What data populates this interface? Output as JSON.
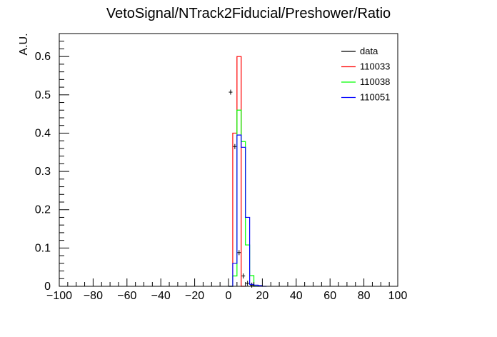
{
  "chart_data": {
    "type": "step-histogram",
    "title": "VetoSignal/NTrack2Fiducial/Preshower/Ratio",
    "xlabel": "",
    "ylabel": "A.U.",
    "xlim": [
      -100,
      100
    ],
    "ylim": [
      0,
      0.66
    ],
    "bin_width": 2.5,
    "grid": false,
    "legend_position": "top-right",
    "x_ticks": [
      -100,
      -80,
      -60,
      -40,
      -20,
      0,
      20,
      40,
      60,
      80,
      100
    ],
    "x_tick_labels": [
      "−100",
      "−80",
      "−60",
      "−40",
      "−20",
      "0",
      "20",
      "40",
      "60",
      "80",
      "100"
    ],
    "y_ticks": [
      0,
      0.1,
      0.2,
      0.3,
      0.4,
      0.5,
      0.6
    ],
    "y_tick_labels": [
      "0",
      "0.1",
      "0.2",
      "0.3",
      "0.4",
      "0.5",
      "0.6"
    ],
    "series": [
      {
        "name": "data",
        "style": "points",
        "color": "#000000",
        "points": [
          {
            "x": 1.25,
            "y": 0.507
          },
          {
            "x": 3.75,
            "y": 0.365
          },
          {
            "x": 6.25,
            "y": 0.088
          },
          {
            "x": 8.75,
            "y": 0.027
          },
          {
            "x": 11.25,
            "y": 0.008
          },
          {
            "x": 13.75,
            "y": 0.003
          }
        ]
      },
      {
        "name": "110033",
        "style": "step",
        "color": "#ff0000",
        "bins": [
          {
            "x0": 0,
            "x1": 2.5,
            "y": 0.0
          },
          {
            "x0": 2.5,
            "x1": 5,
            "y": 0.4
          },
          {
            "x0": 5,
            "x1": 7.5,
            "y": 0.6
          },
          {
            "x0": 7.5,
            "x1": 10,
            "y": 0.0
          }
        ]
      },
      {
        "name": "110038",
        "style": "step",
        "color": "#00ff00",
        "bins": [
          {
            "x0": 0,
            "x1": 2.5,
            "y": 0.0
          },
          {
            "x0": 2.5,
            "x1": 5,
            "y": 0.027
          },
          {
            "x0": 5,
            "x1": 7.5,
            "y": 0.46
          },
          {
            "x0": 7.5,
            "x1": 10,
            "y": 0.378
          },
          {
            "x0": 10,
            "x1": 12.5,
            "y": 0.108
          },
          {
            "x0": 12.5,
            "x1": 15,
            "y": 0.028
          },
          {
            "x0": 15,
            "x1": 17.5,
            "y": 0.0
          }
        ]
      },
      {
        "name": "110051",
        "style": "step",
        "color": "#0000ff",
        "bins": [
          {
            "x0": 0,
            "x1": 2.5,
            "y": 0.0
          },
          {
            "x0": 2.5,
            "x1": 5,
            "y": 0.06
          },
          {
            "x0": 5,
            "x1": 7.5,
            "y": 0.395
          },
          {
            "x0": 7.5,
            "x1": 10,
            "y": 0.363
          },
          {
            "x0": 10,
            "x1": 12.5,
            "y": 0.18
          },
          {
            "x0": 12.5,
            "x1": 15,
            "y": 0.005
          },
          {
            "x0": 15,
            "x1": 17.5,
            "y": 0.003
          },
          {
            "x0": 17.5,
            "x1": 20,
            "y": 0.002
          },
          {
            "x0": 20,
            "x1": 22.5,
            "y": 0.0
          }
        ]
      }
    ]
  }
}
